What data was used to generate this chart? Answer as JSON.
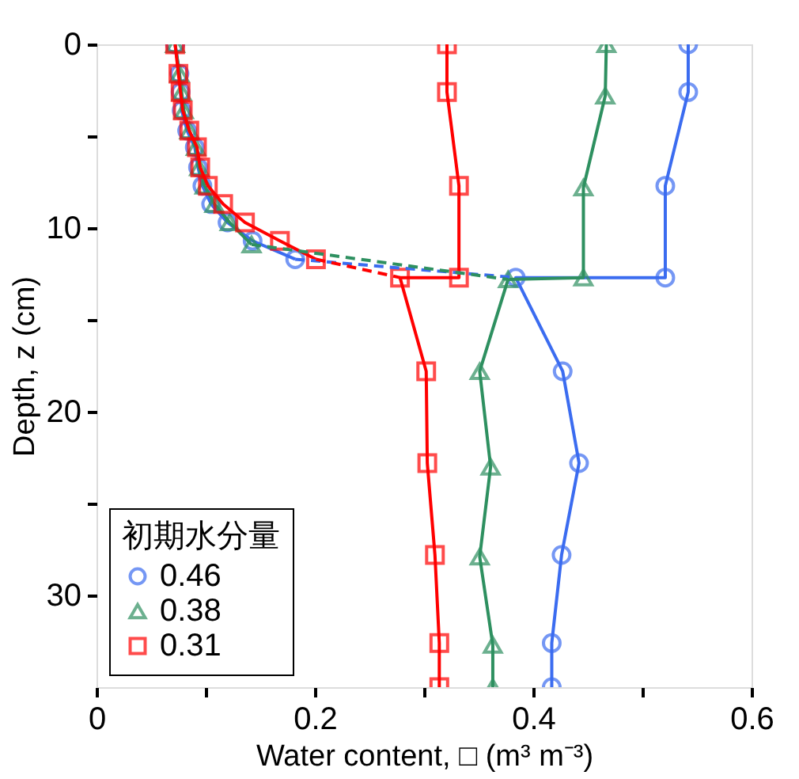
{
  "chart_data": {
    "type": "line",
    "xlabel": "Water content, □ (m³ m⁻³)",
    "ylabel": "Depth, z (cm)",
    "legend_title": "初期水分量",
    "legend": "bottom left",
    "grid": false,
    "xlim": [
      0,
      0.6
    ],
    "ylim": [
      35,
      0
    ],
    "xticks": [
      0,
      {
        "value": 0.1,
        "label": null
      },
      0.2,
      {
        "value": 0.3,
        "label": null
      },
      0.4,
      {
        "value": 0.5,
        "label": null
      },
      0.6
    ],
    "yticks": [
      0,
      {
        "value": 5,
        "label": null
      },
      10,
      {
        "value": 15,
        "label": null
      },
      20,
      {
        "value": 25,
        "label": null
      },
      30
    ],
    "series": [
      {
        "name": "0.46",
        "color": "#3b6cf0",
        "marker": "circle",
        "line_style": "solid",
        "x": [
          0.542,
          0.542,
          0.521,
          0.521,
          0.384,
          0.427,
          0.442,
          0.426,
          0.417,
          0.417
        ],
        "values": [
          0,
          2.6,
          7.7,
          12.7,
          12.7,
          17.8,
          22.8,
          27.8,
          32.6,
          35
        ]
      },
      {
        "name": "0.38",
        "color": "#2e9060",
        "marker": "triangle",
        "line_style": "solid",
        "x": [
          0.467,
          0.466,
          0.446,
          0.446,
          0.377,
          0.351,
          0.361,
          0.351,
          0.363,
          0.363
        ],
        "values": [
          0,
          2.8,
          7.8,
          12.7,
          12.8,
          17.8,
          23,
          27.9,
          32.7,
          35
        ]
      },
      {
        "name": "0.31",
        "color": "#ff0000",
        "marker": "square",
        "line_style": "solid",
        "x": [
          0.321,
          0.321,
          0.332,
          0.332,
          0.278,
          0.302,
          0.303,
          0.31,
          0.314,
          0.314
        ],
        "values": [
          0,
          2.6,
          7.7,
          12.7,
          12.7,
          17.8,
          22.8,
          27.8,
          32.6,
          35
        ]
      },
      {
        "color": "#3b6cf0",
        "marker": "circle",
        "line_style": "solid",
        "x": [
          0.072,
          0.076,
          0.077,
          0.078,
          0.083,
          0.09,
          0.093,
          0.097,
          0.105,
          0.12,
          0.143,
          0.182
        ],
        "values": [
          0,
          1.6,
          2.6,
          3.6,
          4.7,
          5.6,
          6.7,
          7.7,
          8.7,
          9.7,
          10.7,
          11.7
        ]
      },
      {
        "color": "#2e9060",
        "marker": "triangle",
        "line_style": "solid",
        "x": [
          0.072,
          0.076,
          0.078,
          0.08,
          0.085,
          0.091,
          0.094,
          0.099,
          0.108,
          0.122,
          0.142
        ],
        "values": [
          0,
          1.6,
          2.6,
          3.6,
          4.7,
          5.6,
          6.7,
          7.7,
          8.7,
          9.7,
          10.9
        ]
      },
      {
        "color": "#ff0000",
        "marker": "square",
        "line_style": "solid",
        "x": [
          0.072,
          0.075,
          0.077,
          0.079,
          0.085,
          0.092,
          0.095,
          0.102,
          0.116,
          0.136,
          0.168,
          0.201
        ],
        "values": [
          0,
          1.6,
          2.6,
          3.6,
          4.7,
          5.6,
          6.7,
          7.7,
          8.7,
          9.7,
          10.7,
          11.7
        ]
      },
      {
        "color": "#3b6cf0",
        "marker": "none",
        "line_style": "dashed",
        "x": [
          0.182,
          0.384
        ],
        "values": [
          11.7,
          12.7
        ]
      },
      {
        "color": "#2e9060",
        "marker": "none",
        "line_style": "dashed",
        "x": [
          0.142,
          0.377
        ],
        "values": [
          10.9,
          12.8
        ]
      },
      {
        "color": "#ff0000",
        "marker": "none",
        "line_style": "dashed",
        "x": [
          0.201,
          0.278
        ],
        "values": [
          11.7,
          12.7
        ]
      }
    ]
  }
}
